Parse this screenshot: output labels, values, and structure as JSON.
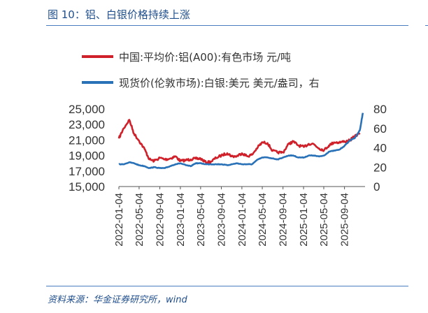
{
  "header": {
    "title": "图 10：铝、白银价格持续上涨"
  },
  "footer": {
    "source": "资料来源：华金证券研究所，wind"
  },
  "colors": {
    "aluminum": "#d0202a",
    "silver": "#2a72b8",
    "rule": "#4a7cc0",
    "title": "#1f4e8c"
  },
  "chart_data": {
    "type": "line",
    "title": "",
    "legend_position": "top",
    "grid": false,
    "x_tick_labels": [
      "2022-01-04",
      "2022-05-04",
      "2022-09-04",
      "2023-01-04",
      "2023-05-04",
      "2023-09-04",
      "2024-01-04",
      "2024-05-04",
      "2024-09-04",
      "2025-01-04",
      "2025-05-04",
      "2025-09-04"
    ],
    "x_range": [
      "2022-01-04",
      "2026-01-04"
    ],
    "y_left": {
      "range": [
        15000,
        25000
      ],
      "tick_labels": [
        "25,000",
        "23,000",
        "21,000",
        "19,000",
        "17,000",
        "15,000"
      ]
    },
    "y_right": {
      "range": [
        0,
        80
      ],
      "tick_labels": [
        "80",
        "60",
        "40",
        "20",
        "0"
      ]
    },
    "series": [
      {
        "name": "中国:平均价:铝(A00):有色市场 元/吨",
        "axis": "left",
        "x": [
          "2022-01-04",
          "2022-02-01",
          "2022-03-07",
          "2022-04-04",
          "2022-05-04",
          "2022-06-06",
          "2022-07-04",
          "2022-08-01",
          "2022-09-05",
          "2022-10-04",
          "2022-11-04",
          "2022-12-05",
          "2023-01-04",
          "2023-02-06",
          "2023-03-06",
          "2023-04-04",
          "2023-05-04",
          "2023-06-05",
          "2023-07-04",
          "2023-08-04",
          "2023-09-04",
          "2023-10-09",
          "2023-11-06",
          "2023-12-04",
          "2024-01-04",
          "2024-02-05",
          "2024-03-04",
          "2024-04-08",
          "2024-05-06",
          "2024-06-04",
          "2024-07-04",
          "2024-08-05",
          "2024-09-04",
          "2024-10-08",
          "2024-11-04",
          "2024-12-04",
          "2025-01-06",
          "2025-02-04",
          "2025-03-04",
          "2025-04-07",
          "2025-05-06",
          "2025-06-04",
          "2025-07-04",
          "2025-08-04",
          "2025-09-04",
          "2025-10-09",
          "2025-11-04",
          "2025-12-04"
        ],
        "y": [
          21200,
          22500,
          23600,
          21800,
          20900,
          19800,
          18500,
          18300,
          18700,
          18500,
          18600,
          18900,
          18300,
          18400,
          18500,
          18600,
          18600,
          18100,
          18200,
          18700,
          19000,
          19300,
          18900,
          18900,
          19300,
          18900,
          19100,
          20100,
          20700,
          20600,
          19600,
          19400,
          19400,
          20500,
          20800,
          20300,
          20100,
          20500,
          20500,
          19900,
          19700,
          20300,
          20700,
          20700,
          20800,
          21000,
          21500,
          21900
        ]
      },
      {
        "name": "现货价(伦敦市场):白银:美元 美元/盎司，右",
        "axis": "right",
        "x": [
          "2022-01-04",
          "2022-02-01",
          "2022-03-07",
          "2022-04-04",
          "2022-05-04",
          "2022-06-06",
          "2022-07-04",
          "2022-08-01",
          "2022-09-05",
          "2022-10-04",
          "2022-11-04",
          "2022-12-05",
          "2023-01-04",
          "2023-02-06",
          "2023-03-06",
          "2023-04-04",
          "2023-05-04",
          "2023-06-05",
          "2023-07-04",
          "2023-08-04",
          "2023-09-04",
          "2023-10-09",
          "2023-11-06",
          "2023-12-04",
          "2024-01-04",
          "2024-02-05",
          "2024-03-04",
          "2024-04-08",
          "2024-05-06",
          "2024-06-04",
          "2024-07-04",
          "2024-08-05",
          "2024-09-04",
          "2024-10-08",
          "2024-11-04",
          "2024-12-04",
          "2025-01-06",
          "2025-02-04",
          "2025-03-04",
          "2025-04-07",
          "2025-05-06",
          "2025-06-04",
          "2025-07-04",
          "2025-08-04",
          "2025-09-04",
          "2025-10-09",
          "2025-11-04",
          "2025-12-04",
          "2025-12-22"
        ],
        "y": [
          23,
          23,
          25,
          24,
          22,
          21,
          19,
          20,
          19,
          19,
          21,
          23,
          24,
          22,
          21,
          24,
          24,
          23,
          23,
          23,
          23,
          22,
          23,
          24,
          23,
          23,
          23,
          28,
          30,
          30,
          29,
          28,
          30,
          32,
          32,
          30,
          30,
          32,
          32,
          31,
          32,
          36,
          37,
          38,
          42,
          48,
          50,
          58,
          76
        ]
      }
    ]
  }
}
